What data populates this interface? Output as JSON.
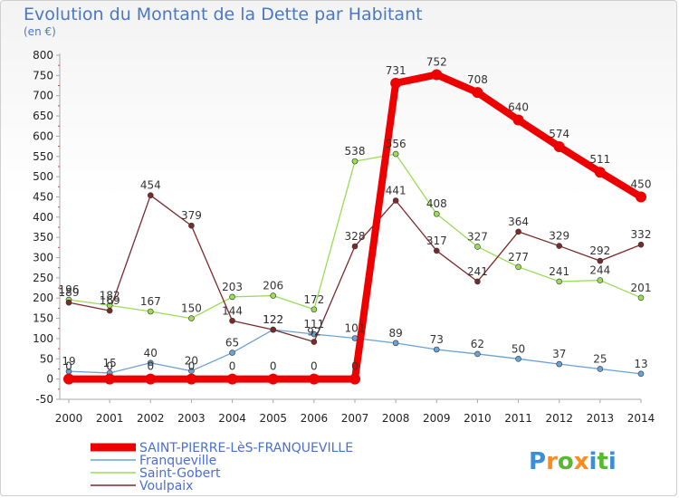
{
  "chart_data": {
    "type": "line",
    "title": "Evolution du Montant de la Dette par Habitant",
    "subtitle": "(en €)",
    "x": [
      "2000",
      "2001",
      "2002",
      "2003",
      "2004",
      "2005",
      "2006",
      "2007",
      "2008",
      "2009",
      "2010",
      "2011",
      "2012",
      "2013",
      "2014"
    ],
    "ylim": [
      -50,
      800
    ],
    "yticks": [
      -50,
      0,
      50,
      100,
      150,
      200,
      250,
      300,
      350,
      400,
      450,
      500,
      550,
      600,
      650,
      700,
      750,
      800
    ],
    "grid": false,
    "legend_position": "bottom-left",
    "series": [
      {
        "name": "SAINT-PIERRE-LèS-FRANQUEVILLE",
        "color": "#ee0000",
        "values": [
          0,
          0,
          0,
          0,
          0,
          0,
          0,
          0,
          731,
          752,
          708,
          640,
          574,
          511,
          450
        ]
      },
      {
        "name": "Franqueville",
        "color": "#6aa2d6",
        "values": [
          19,
          15,
          40,
          20,
          65,
          122,
          111,
          101,
          89,
          73,
          62,
          50,
          37,
          25,
          13
        ]
      },
      {
        "name": "Saint-Gobert",
        "color": "#99dd55",
        "values": [
          196,
          182,
          167,
          150,
          203,
          206,
          172,
          538,
          556,
          408,
          327,
          277,
          241,
          244,
          201
        ]
      },
      {
        "name": "Voulpaix",
        "color": "#7a2a2a",
        "values": [
          189,
          169,
          454,
          379,
          144,
          122,
          92,
          328,
          441,
          317,
          241,
          364,
          329,
          292,
          332
        ]
      }
    ]
  },
  "branding": {
    "logo_text": "Proxiti",
    "logo_colors": [
      "#3a8fd8",
      "#ff8a1f",
      "#58b830",
      "#ff8a1f",
      "#3a8fd8",
      "#58b830",
      "#3a8fd8"
    ]
  }
}
